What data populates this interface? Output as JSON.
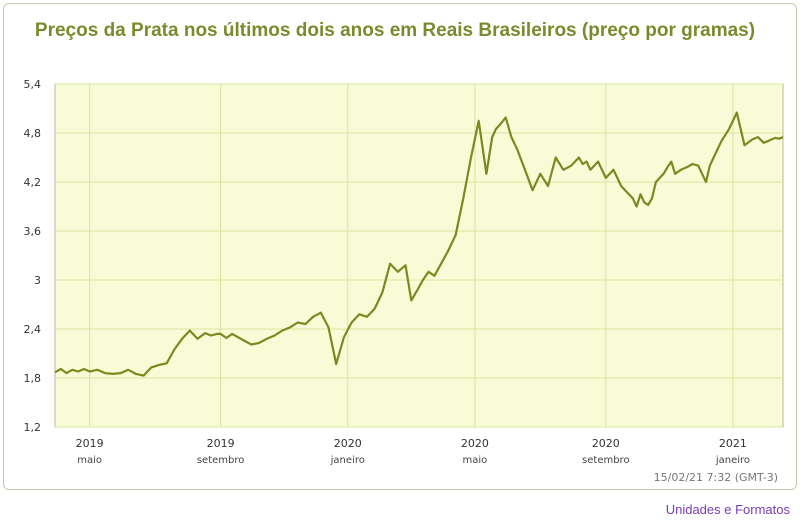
{
  "title": "Preços da Prata nos últimos dois anos em Reais Brasileiros (preço por gramas)",
  "timestamp": "15/02/21 7:32 (GMT-3)",
  "credit_link": "Unidades e Formatos",
  "colors": {
    "line": "#7a8a20",
    "plot_bg": "#f8fbd6",
    "grid": "#d8e4a0",
    "title": "#7b8a2c",
    "credit": "#7a3cb4"
  },
  "chart_data": {
    "type": "line",
    "title": "Preços da Prata nos últimos dois anos em Reais Brasileiros (preço por gramas)",
    "xlabel": "",
    "ylabel": "",
    "ylim": [
      1.2,
      5.4
    ],
    "xlim": [
      2019.32,
      2021.21
    ],
    "yticks": [
      {
        "value": 1.2,
        "label": "1,2"
      },
      {
        "value": 1.8,
        "label": "1,8"
      },
      {
        "value": 2.4,
        "label": "2,4"
      },
      {
        "value": 3,
        "label": "3"
      },
      {
        "value": 3.6,
        "label": "3,6"
      },
      {
        "value": 4.2,
        "label": "4,2"
      },
      {
        "value": 4.8,
        "label": "4,8"
      },
      {
        "value": 5.4,
        "label": "5,4"
      }
    ],
    "xticks": [
      {
        "value": 2019.41,
        "year": "2019",
        "month": "maio"
      },
      {
        "value": 2019.75,
        "year": "2019",
        "month": "setembro"
      },
      {
        "value": 2020.08,
        "year": "2020",
        "month": "janeiro"
      },
      {
        "value": 2020.41,
        "year": "2020",
        "month": "maio"
      },
      {
        "value": 2020.75,
        "year": "2020",
        "month": "setembro"
      },
      {
        "value": 2021.08,
        "year": "2021",
        "month": "janeiro"
      }
    ],
    "grid": true,
    "series": [
      {
        "x": [
          2019.32,
          2019.335,
          2019.35,
          2019.365,
          2019.38,
          2019.395,
          2019.41,
          2019.43,
          2019.45,
          2019.47,
          2019.49,
          2019.51,
          2019.53,
          2019.55,
          2019.57,
          2019.59,
          2019.61,
          2019.63,
          2019.65,
          2019.67,
          2019.69,
          2019.71,
          2019.725,
          2019.74,
          2019.75,
          2019.765,
          2019.78,
          2019.795,
          2019.81,
          2019.83,
          2019.85,
          2019.87,
          2019.89,
          2019.91,
          2019.93,
          2019.95,
          2019.97,
          2019.99,
          2020.01,
          2020.03,
          2020.05,
          2020.07,
          2020.09,
          2020.11,
          2020.13,
          2020.15,
          2020.17,
          2020.19,
          2020.21,
          2020.23,
          2020.245,
          2020.26,
          2020.275,
          2020.29,
          2020.305,
          2020.32,
          2020.34,
          2020.36,
          2020.38,
          2020.4,
          2020.42,
          2020.44,
          2020.455,
          2020.465,
          2020.475,
          2020.49,
          2020.505,
          2020.52,
          2020.54,
          2020.56,
          2020.58,
          2020.6,
          2020.62,
          2020.64,
          2020.66,
          2020.68,
          2020.69,
          2020.7,
          2020.71,
          2020.73,
          2020.75,
          2020.77,
          2020.79,
          2020.81,
          2020.82,
          2020.83,
          2020.84,
          2020.85,
          2020.86,
          2020.87,
          2020.88,
          2020.89,
          2020.9,
          2020.91,
          2020.92,
          2020.93,
          2020.945,
          2020.96,
          2020.975,
          2020.99,
          2021.0,
          2021.01,
          2021.02,
          2021.035,
          2021.05,
          2021.07,
          2021.09,
          2021.11,
          2021.13,
          2021.145,
          2021.16,
          2021.17,
          2021.18,
          2021.19,
          2021.2,
          2021.21
        ],
        "y": [
          1.87,
          1.91,
          1.86,
          1.9,
          1.88,
          1.91,
          1.88,
          1.9,
          1.86,
          1.85,
          1.86,
          1.9,
          1.85,
          1.83,
          1.93,
          1.96,
          1.98,
          2.15,
          2.28,
          2.38,
          2.28,
          2.35,
          2.32,
          2.34,
          2.34,
          2.29,
          2.34,
          2.3,
          2.26,
          2.21,
          2.23,
          2.28,
          2.32,
          2.38,
          2.42,
          2.48,
          2.46,
          2.55,
          2.6,
          2.42,
          1.97,
          2.3,
          2.48,
          2.58,
          2.55,
          2.65,
          2.85,
          3.2,
          3.1,
          3.18,
          2.75,
          2.87,
          3.0,
          3.1,
          3.05,
          3.18,
          3.35,
          3.55,
          4.0,
          4.5,
          4.95,
          4.3,
          4.75,
          4.85,
          4.9,
          4.99,
          4.75,
          4.6,
          4.35,
          4.1,
          4.3,
          4.15,
          4.5,
          4.35,
          4.4,
          4.5,
          4.42,
          4.45,
          4.35,
          4.45,
          4.25,
          4.35,
          4.15,
          4.05,
          4.0,
          3.9,
          4.05,
          3.95,
          3.92,
          4.0,
          4.2,
          4.25,
          4.3,
          4.38,
          4.45,
          4.3,
          4.35,
          4.38,
          4.42,
          4.4,
          4.3,
          4.2,
          4.4,
          4.55,
          4.7,
          4.85,
          5.05,
          4.65,
          4.72,
          4.75,
          4.68,
          4.7,
          4.72,
          4.74,
          4.73,
          4.75
        ]
      }
    ]
  }
}
